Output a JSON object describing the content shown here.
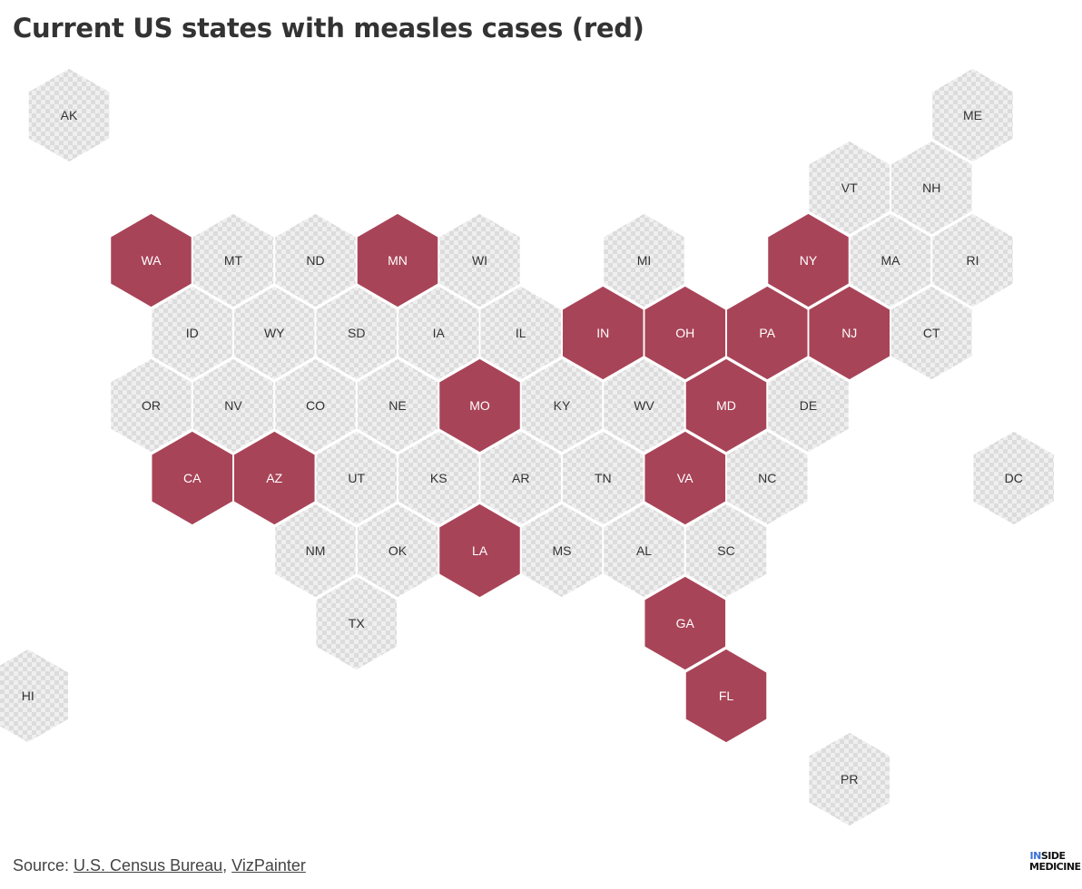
{
  "title": "Current US states with measles cases (red)",
  "colors": {
    "affected": "#a84458",
    "unaffected_light": "#efefef",
    "unaffected_dark": "#dcdcdc",
    "label_affected": "#ffffff",
    "label_unaffected": "#333333"
  },
  "states": [
    {
      "abbr": "AK",
      "row": 0,
      "col": 0,
      "measles": false
    },
    {
      "abbr": "ME",
      "row": 0,
      "col": 11,
      "measles": false
    },
    {
      "abbr": "VT",
      "row": 1,
      "col": 9.5,
      "measles": false
    },
    {
      "abbr": "NH",
      "row": 1,
      "col": 10.5,
      "measles": false
    },
    {
      "abbr": "WA",
      "row": 2,
      "col": 1,
      "measles": true
    },
    {
      "abbr": "MT",
      "row": 2,
      "col": 2,
      "measles": false
    },
    {
      "abbr": "ND",
      "row": 2,
      "col": 3,
      "measles": false
    },
    {
      "abbr": "MN",
      "row": 2,
      "col": 4,
      "measles": true
    },
    {
      "abbr": "WI",
      "row": 2,
      "col": 5,
      "measles": false
    },
    {
      "abbr": "MI",
      "row": 2,
      "col": 7,
      "measles": false
    },
    {
      "abbr": "NY",
      "row": 2,
      "col": 9,
      "measles": true
    },
    {
      "abbr": "MA",
      "row": 2,
      "col": 10,
      "measles": false
    },
    {
      "abbr": "RI",
      "row": 2,
      "col": 11,
      "measles": false
    },
    {
      "abbr": "ID",
      "row": 3,
      "col": 1.5,
      "measles": false
    },
    {
      "abbr": "WY",
      "row": 3,
      "col": 2.5,
      "measles": false
    },
    {
      "abbr": "SD",
      "row": 3,
      "col": 3.5,
      "measles": false
    },
    {
      "abbr": "IA",
      "row": 3,
      "col": 4.5,
      "measles": false
    },
    {
      "abbr": "IL",
      "row": 3,
      "col": 5.5,
      "measles": false
    },
    {
      "abbr": "IN",
      "row": 3,
      "col": 6.5,
      "measles": true
    },
    {
      "abbr": "OH",
      "row": 3,
      "col": 7.5,
      "measles": true
    },
    {
      "abbr": "PA",
      "row": 3,
      "col": 8.5,
      "measles": true
    },
    {
      "abbr": "NJ",
      "row": 3,
      "col": 9.5,
      "measles": true
    },
    {
      "abbr": "CT",
      "row": 3,
      "col": 10.5,
      "measles": false
    },
    {
      "abbr": "OR",
      "row": 4,
      "col": 1,
      "measles": false
    },
    {
      "abbr": "NV",
      "row": 4,
      "col": 2,
      "measles": false
    },
    {
      "abbr": "CO",
      "row": 4,
      "col": 3,
      "measles": false
    },
    {
      "abbr": "NE",
      "row": 4,
      "col": 4,
      "measles": false
    },
    {
      "abbr": "MO",
      "row": 4,
      "col": 5,
      "measles": true
    },
    {
      "abbr": "KY",
      "row": 4,
      "col": 6,
      "measles": false
    },
    {
      "abbr": "WV",
      "row": 4,
      "col": 7,
      "measles": false
    },
    {
      "abbr": "MD",
      "row": 4,
      "col": 8,
      "measles": true
    },
    {
      "abbr": "DE",
      "row": 4,
      "col": 9,
      "measles": false
    },
    {
      "abbr": "CA",
      "row": 5,
      "col": 1.5,
      "measles": true
    },
    {
      "abbr": "AZ",
      "row": 5,
      "col": 2.5,
      "measles": true
    },
    {
      "abbr": "UT",
      "row": 5,
      "col": 3.5,
      "measles": false
    },
    {
      "abbr": "KS",
      "row": 5,
      "col": 4.5,
      "measles": false
    },
    {
      "abbr": "AR",
      "row": 5,
      "col": 5.5,
      "measles": false
    },
    {
      "abbr": "TN",
      "row": 5,
      "col": 6.5,
      "measles": false
    },
    {
      "abbr": "VA",
      "row": 5,
      "col": 7.5,
      "measles": true
    },
    {
      "abbr": "NC",
      "row": 5,
      "col": 8.5,
      "measles": false
    },
    {
      "abbr": "DC",
      "row": 5,
      "col": 11.5,
      "measles": false
    },
    {
      "abbr": "NM",
      "row": 6,
      "col": 3,
      "measles": false
    },
    {
      "abbr": "OK",
      "row": 6,
      "col": 4,
      "measles": false
    },
    {
      "abbr": "LA",
      "row": 6,
      "col": 5,
      "measles": true
    },
    {
      "abbr": "MS",
      "row": 6,
      "col": 6,
      "measles": false
    },
    {
      "abbr": "AL",
      "row": 6,
      "col": 7,
      "measles": false
    },
    {
      "abbr": "SC",
      "row": 6,
      "col": 8,
      "measles": false
    },
    {
      "abbr": "TX",
      "row": 7,
      "col": 3.5,
      "measles": false
    },
    {
      "abbr": "GA",
      "row": 7,
      "col": 7.5,
      "measles": true
    },
    {
      "abbr": "HI",
      "row": 8,
      "col": -0.5,
      "measles": false
    },
    {
      "abbr": "FL",
      "row": 8,
      "col": 8,
      "measles": true
    },
    {
      "abbr": "PR",
      "row": 9.15,
      "col": 9.5,
      "measles": false
    }
  ],
  "footer": {
    "source_prefix": "Source: ",
    "link1": "U.S. Census Bureau",
    "separator": ", ",
    "link2": "VizPainter"
  },
  "brand": {
    "accent": "IN",
    "rest": "SIDE",
    "line2": "MEDICINE"
  }
}
